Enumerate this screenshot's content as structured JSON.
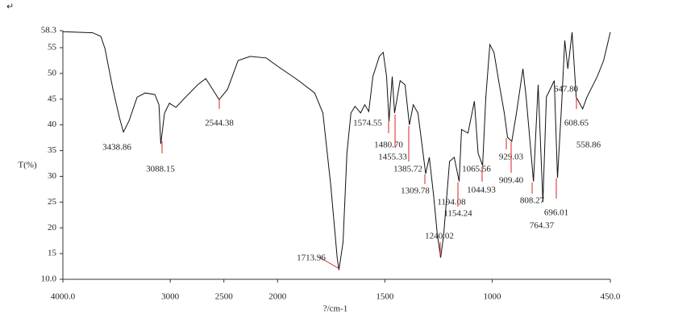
{
  "corner_mark": "↵",
  "chart_data": {
    "type": "line",
    "xlabel": "?/cm-1",
    "ylabel": "T(%)",
    "xlim": [
      4000,
      450
    ],
    "xscale_break": 2000,
    "xscale_factor": 2,
    "ylim": [
      10,
      58.3
    ],
    "yticks": [
      {
        "value": 10,
        "label": "10.0"
      },
      15,
      20,
      25,
      30,
      35,
      40,
      45,
      50,
      55,
      58.3
    ],
    "xticks": [
      {
        "value": 4000,
        "label": "4000.0"
      },
      3000,
      2500,
      2000,
      1500,
      1000,
      {
        "value": 450,
        "label": "450.0"
      }
    ],
    "series": [
      {
        "color": "#111111",
        "x": [
          4000,
          3722,
          3647,
          3609,
          3534,
          3474,
          3436,
          3383,
          3308,
          3233,
          3143,
          3105,
          3088,
          3053,
          3008,
          2947,
          2857,
          2744,
          2669,
          2617,
          2544,
          2466,
          2368,
          2256,
          2105,
          2000,
          1902,
          1827,
          1789,
          1752,
          1722,
          1714,
          1695,
          1677,
          1658,
          1639,
          1613,
          1594,
          1575,
          1556,
          1526,
          1508,
          1492,
          1481,
          1466,
          1455,
          1429,
          1406,
          1386,
          1368,
          1346,
          1310,
          1293,
          1274,
          1256,
          1240,
          1226,
          1199,
          1177,
          1154,
          1143,
          1113,
          1083,
          1066,
          1045,
          1030,
          1011,
          992,
          970,
          944,
          929,
          909,
          887,
          857,
          842,
          808,
          786,
          764,
          748,
          711,
          696,
          677,
          662,
          648,
          628,
          609,
          579,
          559,
          511,
          481,
          450
        ],
        "values": [
          58.1,
          57.9,
          57.2,
          54.9,
          47,
          41.5,
          38.6,
          40.8,
          45.4,
          46.2,
          45.9,
          43.9,
          36.3,
          42.3,
          44.2,
          43.4,
          45.4,
          47.8,
          49,
          47.3,
          44.9,
          46.9,
          52.5,
          53.3,
          53,
          51.4,
          48.6,
          46.2,
          42.3,
          28.2,
          14.1,
          11.8,
          17.2,
          34.5,
          42.3,
          43.6,
          42.3,
          43.9,
          42.6,
          49.4,
          53.3,
          54.1,
          49.4,
          40.7,
          49.4,
          42.3,
          48.6,
          47.8,
          40,
          43.9,
          42.3,
          30.5,
          33.7,
          26.6,
          18.8,
          14.2,
          18.8,
          32.9,
          33.7,
          29,
          39.1,
          38.4,
          44.6,
          34.5,
          32.1,
          45.4,
          55.6,
          54.1,
          48.6,
          42.3,
          37.6,
          36.8,
          42.3,
          50.9,
          45.4,
          29,
          47.8,
          25,
          45.4,
          48.6,
          29.7,
          43.9,
          56.4,
          50.9,
          58,
          45.4,
          43.1,
          45.4,
          49.4,
          52.5,
          58
        ]
      }
    ],
    "annotations": [
      "3438.86",
      "3088.15",
      "2544.38",
      "1713.96",
      "1574.55",
      "1480.70",
      "1455.33",
      "1385.72",
      "1309.78",
      "1194.08",
      "1240.02",
      "1154.24",
      "1065.56",
      "1044.93",
      "929.03",
      "909.40",
      "808.27",
      "764.37",
      "696.01",
      "647.80",
      "608.65",
      "558.86"
    ]
  }
}
